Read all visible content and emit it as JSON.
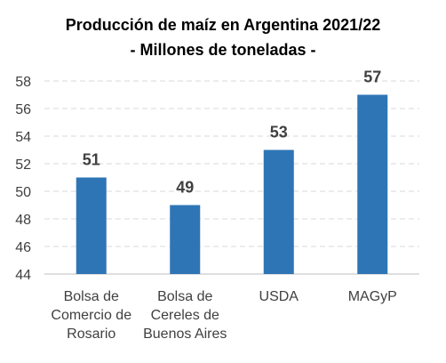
{
  "chart_data": {
    "type": "bar",
    "title": "Producción de maíz en Argentina 2021/22",
    "subtitle": "- Millones de toneladas -",
    "categories": [
      [
        "Bolsa de",
        "Comercio de",
        "Rosario"
      ],
      [
        "Bolsa de",
        "Cereles de",
        "Buenos Aires"
      ],
      [
        "USDA"
      ],
      [
        "MAGyP"
      ]
    ],
    "values": [
      51,
      49,
      53,
      57
    ],
    "data_labels": [
      "51",
      "49",
      "53",
      "57"
    ],
    "y_ticks": [
      44,
      46,
      48,
      50,
      52,
      54,
      56,
      58
    ],
    "ylim": [
      44,
      58
    ],
    "grid": true,
    "grid_style": "dashed",
    "legend": false,
    "bar_color": "#2e75b6",
    "grid_color": "#d9d9d9",
    "axis_color": "#bfbfbf",
    "text_color": "#000000",
    "tick_color": "#404040",
    "label_color": "#404040"
  }
}
